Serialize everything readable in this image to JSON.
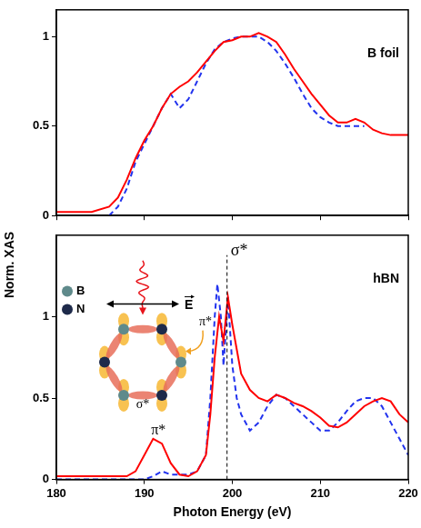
{
  "ylabel": "Norm. XAS",
  "chart_data": [
    {
      "type": "line",
      "title": "B foil",
      "xlim": [
        180,
        220
      ],
      "xticks": [
        180,
        190,
        200,
        210,
        220
      ],
      "ylim": [
        0,
        1.15
      ],
      "yticks": [
        0,
        0.5,
        1
      ],
      "grid": false,
      "tick_labels": "y",
      "series": [
        {
          "color": "#ff0000",
          "line_style": "solid",
          "x": [
            180,
            182,
            184,
            186,
            187,
            188,
            189,
            190,
            191,
            192,
            193,
            194,
            195,
            196,
            197,
            198,
            199,
            200,
            201,
            202,
            203,
            204,
            205,
            206,
            207,
            208,
            209,
            210,
            211,
            212,
            213,
            214,
            215,
            216,
            217,
            218,
            219,
            220
          ],
          "values": [
            0.02,
            0.02,
            0.02,
            0.05,
            0.1,
            0.2,
            0.32,
            0.42,
            0.5,
            0.6,
            0.68,
            0.72,
            0.75,
            0.8,
            0.86,
            0.92,
            0.97,
            0.98,
            1.0,
            1.0,
            1.02,
            1.0,
            0.97,
            0.9,
            0.82,
            0.75,
            0.68,
            0.62,
            0.56,
            0.52,
            0.52,
            0.54,
            0.52,
            0.48,
            0.46,
            0.45,
            0.45,
            0.45
          ]
        },
        {
          "color": "#2233ee",
          "line_style": "dashed",
          "x": [
            186,
            187,
            188,
            189,
            190,
            191,
            192,
            193,
            194,
            195,
            196,
            197,
            198,
            199,
            200,
            201,
            202,
            203,
            204,
            205,
            206,
            207,
            208,
            209,
            210,
            211,
            212,
            213,
            214,
            215
          ],
          "values": [
            0,
            0.05,
            0.15,
            0.3,
            0.4,
            0.5,
            0.6,
            0.68,
            0.6,
            0.65,
            0.75,
            0.85,
            0.93,
            0.97,
            0.99,
            1.0,
            1.0,
            1.0,
            0.97,
            0.92,
            0.85,
            0.77,
            0.68,
            0.6,
            0.55,
            0.52,
            0.5,
            0.5,
            0.5,
            0.5
          ]
        }
      ]
    },
    {
      "type": "line",
      "title": "hBN",
      "xlabel": "Photon Energy (eV)",
      "xlim": [
        180,
        220
      ],
      "xticks": [
        180,
        190,
        200,
        210,
        220
      ],
      "ylim": [
        0,
        1.5
      ],
      "yticks": [
        0,
        0.5,
        1
      ],
      "grid": false,
      "series": [
        {
          "color": "#ff0000",
          "line_style": "solid",
          "x": [
            180,
            185,
            188,
            189,
            190,
            191,
            192,
            193,
            194,
            195,
            196,
            197,
            197.5,
            198,
            198.5,
            199,
            199.5,
            200,
            200.5,
            201,
            202,
            203,
            204,
            205,
            206,
            207,
            208,
            209,
            210,
            211,
            212,
            213,
            214,
            215,
            216,
            217,
            218,
            219,
            220
          ],
          "values": [
            0.02,
            0.02,
            0.02,
            0.05,
            0.15,
            0.25,
            0.22,
            0.1,
            0.03,
            0.02,
            0.05,
            0.15,
            0.4,
            0.75,
            1.0,
            0.85,
            1.12,
            0.95,
            0.8,
            0.65,
            0.55,
            0.5,
            0.48,
            0.52,
            0.5,
            0.47,
            0.45,
            0.42,
            0.38,
            0.33,
            0.32,
            0.35,
            0.4,
            0.45,
            0.48,
            0.5,
            0.48,
            0.4,
            0.35
          ]
        },
        {
          "color": "#2233ee",
          "line_style": "dashed",
          "x": [
            180,
            190,
            191,
            192,
            193,
            194,
            195,
            196,
            197,
            197.5,
            198,
            198.3,
            198.7,
            199,
            199.5,
            200,
            200.5,
            201,
            202,
            203,
            204,
            205,
            206,
            207,
            208,
            209,
            210,
            211,
            212,
            213,
            214,
            215,
            216,
            217,
            218,
            219,
            220
          ],
          "values": [
            0,
            0,
            0.02,
            0.05,
            0.03,
            0.03,
            0.03,
            0.05,
            0.15,
            0.5,
            1.0,
            1.2,
            1.0,
            0.7,
            1.12,
            0.7,
            0.5,
            0.4,
            0.3,
            0.35,
            0.45,
            0.52,
            0.5,
            0.45,
            0.4,
            0.35,
            0.3,
            0.3,
            0.35,
            0.42,
            0.48,
            0.5,
            0.5,
            0.45,
            0.35,
            0.25,
            0.15
          ]
        }
      ],
      "annotations": [
        {
          "text": "π*",
          "x": 191.6,
          "y": 0.3
        },
        {
          "text": "σ*",
          "x": 199.4,
          "y": 1.4,
          "line_style": "dashed"
        }
      ],
      "inset": {
        "atoms": [
          "B",
          "N"
        ],
        "field": "E",
        "labels": [
          "π*",
          "σ*"
        ]
      }
    }
  ]
}
